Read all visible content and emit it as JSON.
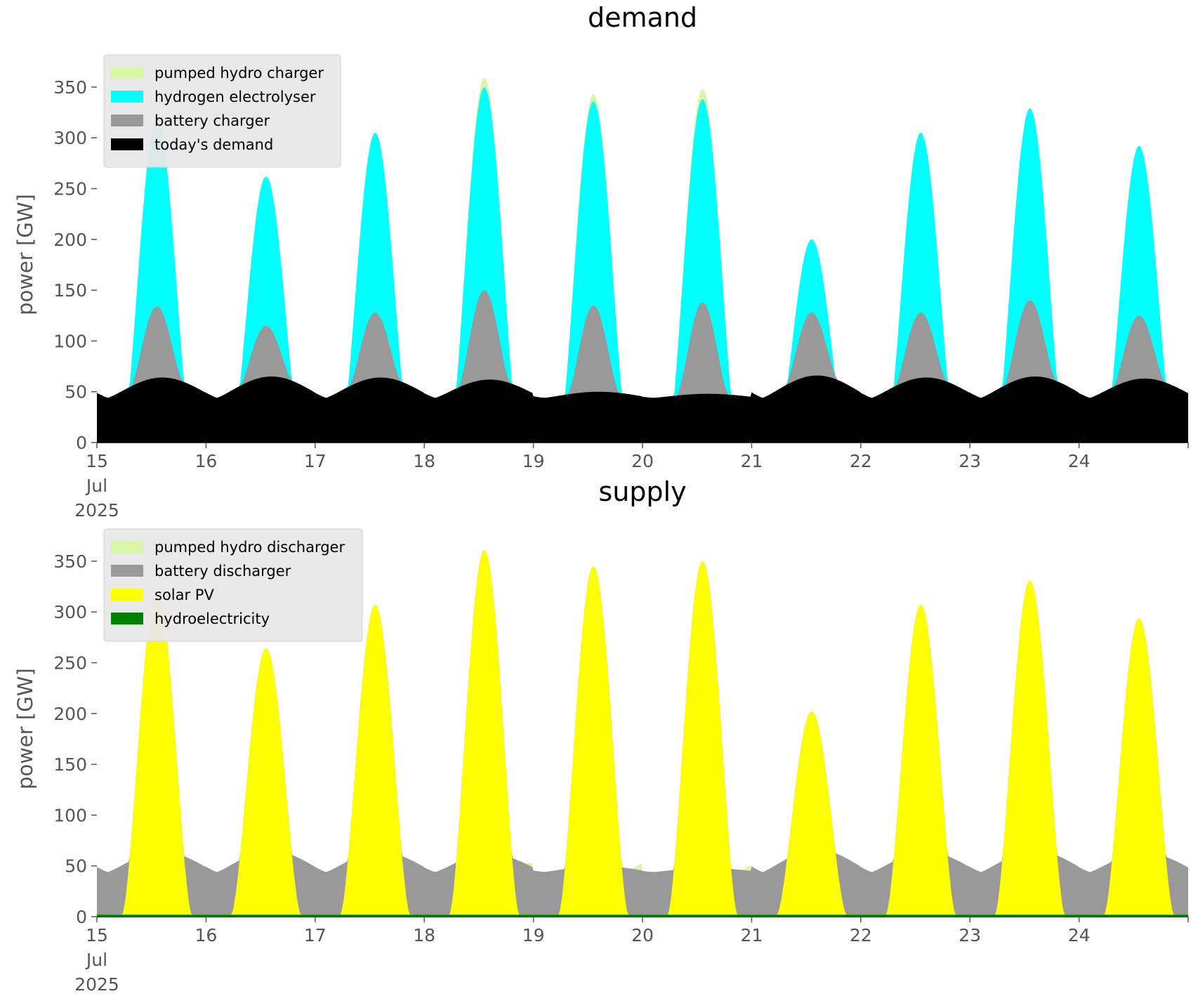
{
  "chart_data": [
    {
      "type": "area",
      "stacked": true,
      "title": "demand",
      "ylabel": "power [GW]",
      "xlabel": "",
      "ylim": [
        0,
        370
      ],
      "yticks": [
        0,
        50,
        100,
        150,
        200,
        250,
        300,
        350
      ],
      "xlim_days": [
        0,
        10
      ],
      "xtick_labels": [
        "15\nJul\n2025",
        "16",
        "17",
        "18",
        "19",
        "20",
        "21",
        "22",
        "23",
        "24"
      ],
      "legend_position": "upper-left",
      "days": [
        "15 Jul",
        "16 Jul",
        "17 Jul",
        "18 Jul",
        "19 Jul",
        "20 Jul",
        "21 Jul",
        "22 Jul",
        "23 Jul",
        "24 Jul"
      ],
      "series": [
        {
          "name": "today's demand",
          "color": "#000000",
          "daily_peak": [
            64,
            65,
            64,
            62,
            50,
            48,
            66,
            64,
            65,
            63
          ],
          "night_min": 44
        },
        {
          "name": "battery charger",
          "color": "#999999",
          "daily_peak": [
            134,
            115,
            128,
            150,
            135,
            138,
            128,
            128,
            140,
            125
          ]
        },
        {
          "name": "hydrogen electrolyser",
          "color": "#00ffff",
          "daily_peak": [
            320,
            262,
            305,
            350,
            336,
            338,
            200,
            305,
            329,
            292
          ]
        },
        {
          "name": "pumped hydro charger",
          "color": "#d9f5a6",
          "daily_peak": [
            320,
            262,
            305,
            359,
            343,
            348,
            200,
            305,
            329,
            292
          ]
        }
      ]
    },
    {
      "type": "area",
      "stacked": true,
      "title": "supply",
      "ylabel": "power [GW]",
      "xlabel": "",
      "ylim": [
        0,
        370
      ],
      "yticks": [
        0,
        50,
        100,
        150,
        200,
        250,
        300,
        350
      ],
      "xlim_days": [
        0,
        10
      ],
      "xtick_labels": [
        "15\nJul\n2025",
        "16",
        "17",
        "18",
        "19",
        "20",
        "21",
        "22",
        "23",
        "24"
      ],
      "legend_position": "upper-left",
      "days": [
        "15 Jul",
        "16 Jul",
        "17 Jul",
        "18 Jul",
        "19 Jul",
        "20 Jul",
        "21 Jul",
        "22 Jul",
        "23 Jul",
        "24 Jul"
      ],
      "series": [
        {
          "name": "hydroelectricity",
          "color": "#008000",
          "approx_value": 2
        },
        {
          "name": "solar PV",
          "color": "#ffff00",
          "daily_peak": [
            320,
            262,
            305,
            359,
            343,
            348,
            200,
            305,
            329,
            292
          ]
        },
        {
          "name": "battery discharger",
          "color": "#999999",
          "night_level": [
            48,
            45,
            45,
            45,
            45,
            45,
            45,
            45,
            45,
            45
          ]
        },
        {
          "name": "pumped hydro discharger",
          "color": "#d9f5a6",
          "night_extra": [
            0,
            0,
            0,
            4,
            8,
            6,
            0,
            0,
            0,
            0
          ]
        }
      ]
    }
  ]
}
